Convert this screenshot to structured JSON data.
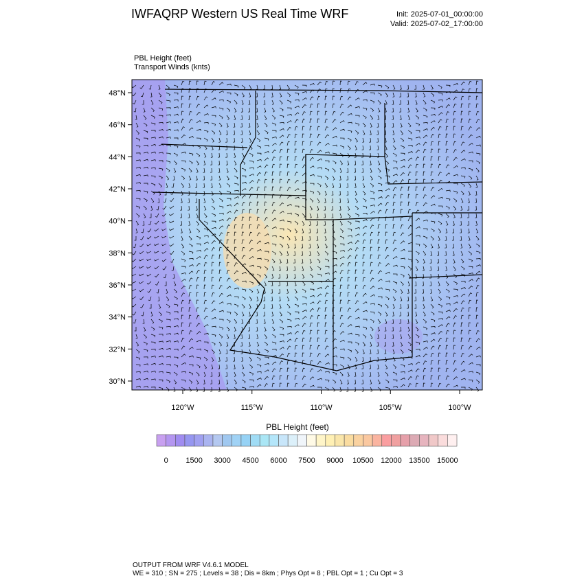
{
  "header": {
    "title": "IWFAQRP Western US Real Time WRF",
    "init": "Init: 2025-07-01_00:00:00",
    "valid": "Valid: 2025-07-02_17:00:00"
  },
  "fields": [
    "PBL Height   (feet)",
    "Transport Winds   (knts)"
  ],
  "map": {
    "yticks": [
      {
        "value": 30,
        "label": "30°N"
      },
      {
        "value": 32,
        "label": "32°N"
      },
      {
        "value": 34,
        "label": "34°N"
      },
      {
        "value": 36,
        "label": "36°N"
      },
      {
        "value": 38,
        "label": "38°N"
      },
      {
        "value": 40,
        "label": "40°N"
      },
      {
        "value": 42,
        "label": "42°N"
      },
      {
        "value": 44,
        "label": "44°N"
      },
      {
        "value": 46,
        "label": "46°N"
      },
      {
        "value": 48,
        "label": "48°N"
      }
    ],
    "xticks": [
      {
        "value": -120,
        "label": "120°W"
      },
      {
        "value": -115,
        "label": "115°W"
      },
      {
        "value": -110,
        "label": "110°W"
      },
      {
        "value": -105,
        "label": "105°W"
      },
      {
        "value": -100,
        "label": "100°W"
      }
    ]
  },
  "colorbar": {
    "title": "PBL Height  (feet)",
    "ticks": [
      0,
      1500,
      3000,
      4500,
      6000,
      7500,
      9000,
      10500,
      12000,
      13500,
      15000
    ],
    "colors": [
      "#c8a0f0",
      "#b496f0",
      "#a08cf0",
      "#9696f0",
      "#a0a0f0",
      "#aab4f0",
      "#b4c8f0",
      "#a0c8f0",
      "#a0d2f5",
      "#96d2f5",
      "#a0dcf5",
      "#aae6f5",
      "#b4e6fa",
      "#c8e6fa",
      "#dcf0fa",
      "#f0f5fa",
      "#fffae6",
      "#fff5c8",
      "#fff0b4",
      "#fae6aa",
      "#fadca0",
      "#fad2a0",
      "#fac8a0",
      "#fab4a0",
      "#fa9ea0",
      "#f0a0a0",
      "#e6a0aa",
      "#dcaab4",
      "#e6b4be",
      "#f0c8c8",
      "#fadcdc",
      "#fff0f0"
    ]
  },
  "footer": [
    "OUTPUT FROM WRF V4.6.1 MODEL",
    "WE = 310 ; SN = 275 ; Levels = 38 ; Dis = 8km ; Phys Opt = 8 ; PBL Opt = 1 ; Cu Opt = 3"
  ]
}
